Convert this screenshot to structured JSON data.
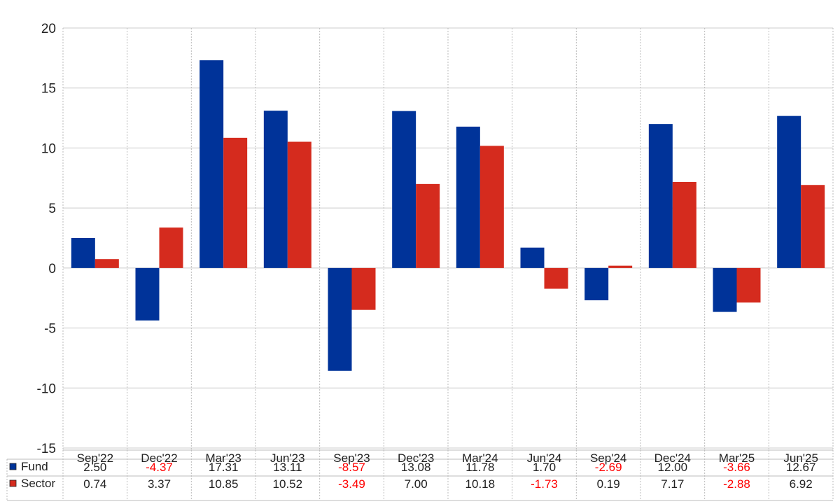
{
  "chart_data": {
    "type": "bar",
    "categories": [
      "Sep'22",
      "Dec'22",
      "Mar'23",
      "Jun'23",
      "Sep'23",
      "Dec'23",
      "Mar'24",
      "Jun'24",
      "Sep'24",
      "Dec'24",
      "Mar'25",
      "Jun'25"
    ],
    "series": [
      {
        "name": "Fund",
        "color": "#003399",
        "values": [
          2.5,
          -4.37,
          17.31,
          13.11,
          -8.57,
          13.08,
          11.78,
          1.7,
          -2.69,
          12.0,
          -3.66,
          12.67
        ],
        "labels": [
          "2.50",
          "-4.37",
          "17.31",
          "13.11",
          "-8.57",
          "13.08",
          "11.78",
          "1.70",
          "-2.69",
          "12.00",
          "-3.66",
          "12.67"
        ]
      },
      {
        "name": "Sector",
        "color": "#d52b1e",
        "values": [
          0.74,
          3.37,
          10.85,
          10.52,
          -3.49,
          7.0,
          10.18,
          -1.73,
          0.19,
          7.17,
          -2.88,
          6.92
        ],
        "labels": [
          "0.74",
          "3.37",
          "10.85",
          "10.52",
          "-3.49",
          "7.00",
          "10.18",
          "-1.73",
          "0.19",
          "7.17",
          "-2.88",
          "6.92"
        ]
      }
    ],
    "yticks": [
      "20",
      "15",
      "10",
      "5",
      "0",
      "-5",
      "-10",
      "-15"
    ],
    "ytick_values": [
      20,
      15,
      10,
      5,
      0,
      -5,
      -10,
      -15
    ],
    "ylim": [
      -15,
      20
    ],
    "grid": true,
    "legend": "data-table-below",
    "negative_label_color": "#ff0000"
  }
}
